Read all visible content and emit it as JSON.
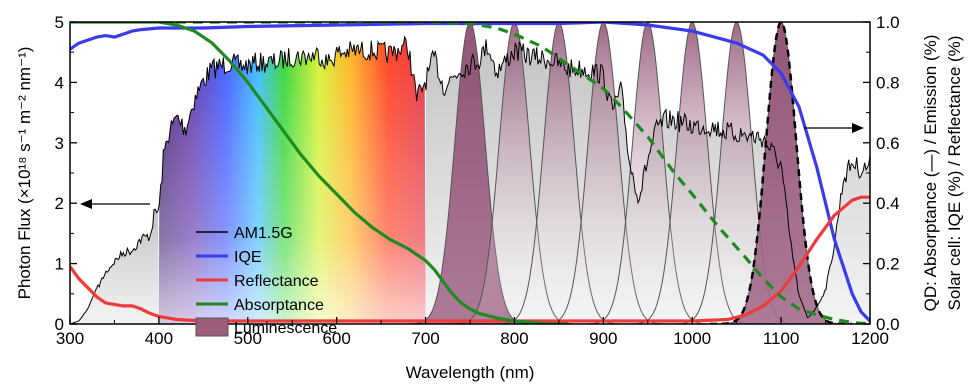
{
  "chart_data": {
    "type": "line",
    "xlabel": "Wavelength (nm)",
    "ylabel_left": "Photon Flux (×10¹⁸ s⁻¹ m⁻² nm⁻¹)",
    "ylabel_right_1": "QD: Absorptance (—) / Emission (%)",
    "ylabel_right_2": "Solar cell: IQE (%) / Reflectance (%)",
    "xlim": [
      300,
      1200
    ],
    "ylim_left": [
      0,
      5
    ],
    "ylim_right": [
      0,
      1
    ],
    "x_ticks": [
      "300",
      "400",
      "500",
      "600",
      "700",
      "800",
      "900",
      "1000",
      "1100",
      "1200"
    ],
    "y_left_ticks": [
      "0",
      "1",
      "2",
      "3",
      "4",
      "5"
    ],
    "y_right_ticks": [
      "0.0",
      "0.2",
      "0.4",
      "0.6",
      "0.8",
      "1.0"
    ],
    "legend_position": "bottom-left",
    "legend": [
      {
        "label": "AM1.5G",
        "color": "#000000",
        "kind": "line"
      },
      {
        "label": "IQE",
        "color": "#3a3aee",
        "kind": "line"
      },
      {
        "label": "Reflectance",
        "color": "#ee3a3a",
        "kind": "line"
      },
      {
        "label": "Absorptance",
        "color": "#1f8a1f",
        "kind": "line"
      },
      {
        "label": "Luminescence",
        "color": "#9c5c7c",
        "kind": "area"
      }
    ],
    "series": [
      {
        "name": "AM1.5G",
        "axis": "left",
        "color": "#000000",
        "x": [
          300,
          310,
          320,
          330,
          340,
          350,
          360,
          370,
          380,
          390,
          395,
          400,
          405,
          410,
          420,
          430,
          440,
          450,
          460,
          470,
          480,
          490,
          500,
          510,
          520,
          530,
          540,
          550,
          560,
          570,
          580,
          590,
          600,
          620,
          640,
          660,
          680,
          690,
          700,
          710,
          720,
          740,
          760,
          770,
          780,
          800,
          820,
          840,
          860,
          880,
          900,
          910,
          920,
          930,
          940,
          950,
          960,
          970,
          980,
          1000,
          1020,
          1040,
          1060,
          1080,
          1100,
          1110,
          1120,
          1130,
          1140,
          1150,
          1160,
          1170,
          1180,
          1190,
          1200
        ],
        "y": [
          0.0,
          0.05,
          0.25,
          0.6,
          0.9,
          1.1,
          1.25,
          1.3,
          1.5,
          1.55,
          1.95,
          2.0,
          2.9,
          3.3,
          3.6,
          3.4,
          3.9,
          4.2,
          4.4,
          4.45,
          4.5,
          4.45,
          4.45,
          4.5,
          4.5,
          4.5,
          4.55,
          4.6,
          4.6,
          4.6,
          4.65,
          4.5,
          4.65,
          4.7,
          4.7,
          4.65,
          4.8,
          3.9,
          4.2,
          4.6,
          4.1,
          4.4,
          4.55,
          4.8,
          4.35,
          4.7,
          4.6,
          4.55,
          4.4,
          4.4,
          4.3,
          3.7,
          4.05,
          2.8,
          2.2,
          2.9,
          3.4,
          3.55,
          3.55,
          3.45,
          3.45,
          3.35,
          3.3,
          3.25,
          2.8,
          1.5,
          0.5,
          0.1,
          0.3,
          0.6,
          1.4,
          2.55,
          2.85,
          2.7,
          2.8
        ]
      },
      {
        "name": "IQE",
        "axis": "right",
        "color": "#3a3aee",
        "x": [
          300,
          310,
          320,
          330,
          340,
          350,
          360,
          370,
          380,
          400,
          450,
          500,
          600,
          700,
          800,
          850,
          900,
          950,
          1000,
          1050,
          1080,
          1100,
          1120,
          1140,
          1160,
          1180,
          1190,
          1200
        ],
        "y": [
          0.91,
          0.93,
          0.94,
          0.95,
          0.955,
          0.95,
          0.96,
          0.97,
          0.975,
          0.98,
          0.98,
          0.985,
          0.99,
          0.995,
          0.995,
          0.995,
          1.0,
          0.99,
          0.97,
          0.93,
          0.89,
          0.83,
          0.72,
          0.52,
          0.28,
          0.1,
          0.04,
          0.01
        ]
      },
      {
        "name": "Reflectance",
        "axis": "right",
        "color": "#ee3a3a",
        "x": [
          300,
          310,
          320,
          330,
          340,
          350,
          360,
          370,
          380,
          390,
          400,
          420,
          450,
          500,
          600,
          700,
          800,
          900,
          1000,
          1040,
          1060,
          1080,
          1100,
          1120,
          1140,
          1160,
          1180,
          1190,
          1200
        ],
        "y": [
          0.19,
          0.15,
          0.12,
          0.09,
          0.07,
          0.065,
          0.06,
          0.06,
          0.05,
          0.035,
          0.025,
          0.015,
          0.01,
          0.01,
          0.01,
          0.01,
          0.01,
          0.01,
          0.01,
          0.015,
          0.03,
          0.06,
          0.11,
          0.19,
          0.28,
          0.36,
          0.41,
          0.42,
          0.42
        ]
      },
      {
        "name": "Absorptance",
        "axis": "right",
        "color": "#1f8a1f",
        "x": [
          300,
          320,
          340,
          360,
          380,
          400,
          420,
          440,
          460,
          480,
          500,
          520,
          540,
          560,
          580,
          600,
          620,
          640,
          660,
          680,
          700,
          710,
          720,
          730,
          740,
          750,
          760,
          780,
          800,
          820,
          840,
          860
        ],
        "y": [
          1.0,
          1.0,
          1.0,
          1.0,
          1.0,
          1.0,
          0.99,
          0.97,
          0.93,
          0.87,
          0.8,
          0.72,
          0.64,
          0.56,
          0.49,
          0.43,
          0.37,
          0.32,
          0.28,
          0.25,
          0.21,
          0.18,
          0.14,
          0.1,
          0.07,
          0.05,
          0.035,
          0.02,
          0.01,
          0.005,
          0.0,
          0.0
        ]
      },
      {
        "name": "Absorptance (dashed)",
        "axis": "right",
        "color": "#1f8a1f",
        "dashed": true,
        "x": [
          400,
          450,
          500,
          600,
          700,
          750,
          780,
          800,
          830,
          860,
          900,
          920,
          950,
          980,
          1000,
          1030,
          1060,
          1080,
          1100,
          1120,
          1140,
          1160,
          1180,
          1200
        ],
        "y": [
          1.0,
          1.0,
          1.0,
          1.0,
          1.0,
          0.995,
          0.98,
          0.96,
          0.92,
          0.86,
          0.78,
          0.72,
          0.62,
          0.5,
          0.43,
          0.32,
          0.22,
          0.15,
          0.09,
          0.05,
          0.03,
          0.015,
          0.005,
          0.0
        ]
      }
    ],
    "luminescence_peaks_nm": [
      750,
      800,
      850,
      900,
      950,
      1000,
      1050,
      1100
    ],
    "luminescence_peak_value": 1.0,
    "luminescence_fwhm_nm": 40,
    "annotations": [
      {
        "text": "arrow pointing to left axis",
        "target": "AM1.5G",
        "direction": "left"
      },
      {
        "text": "arrow pointing to right axis",
        "target": "IQE",
        "direction": "right"
      }
    ]
  }
}
